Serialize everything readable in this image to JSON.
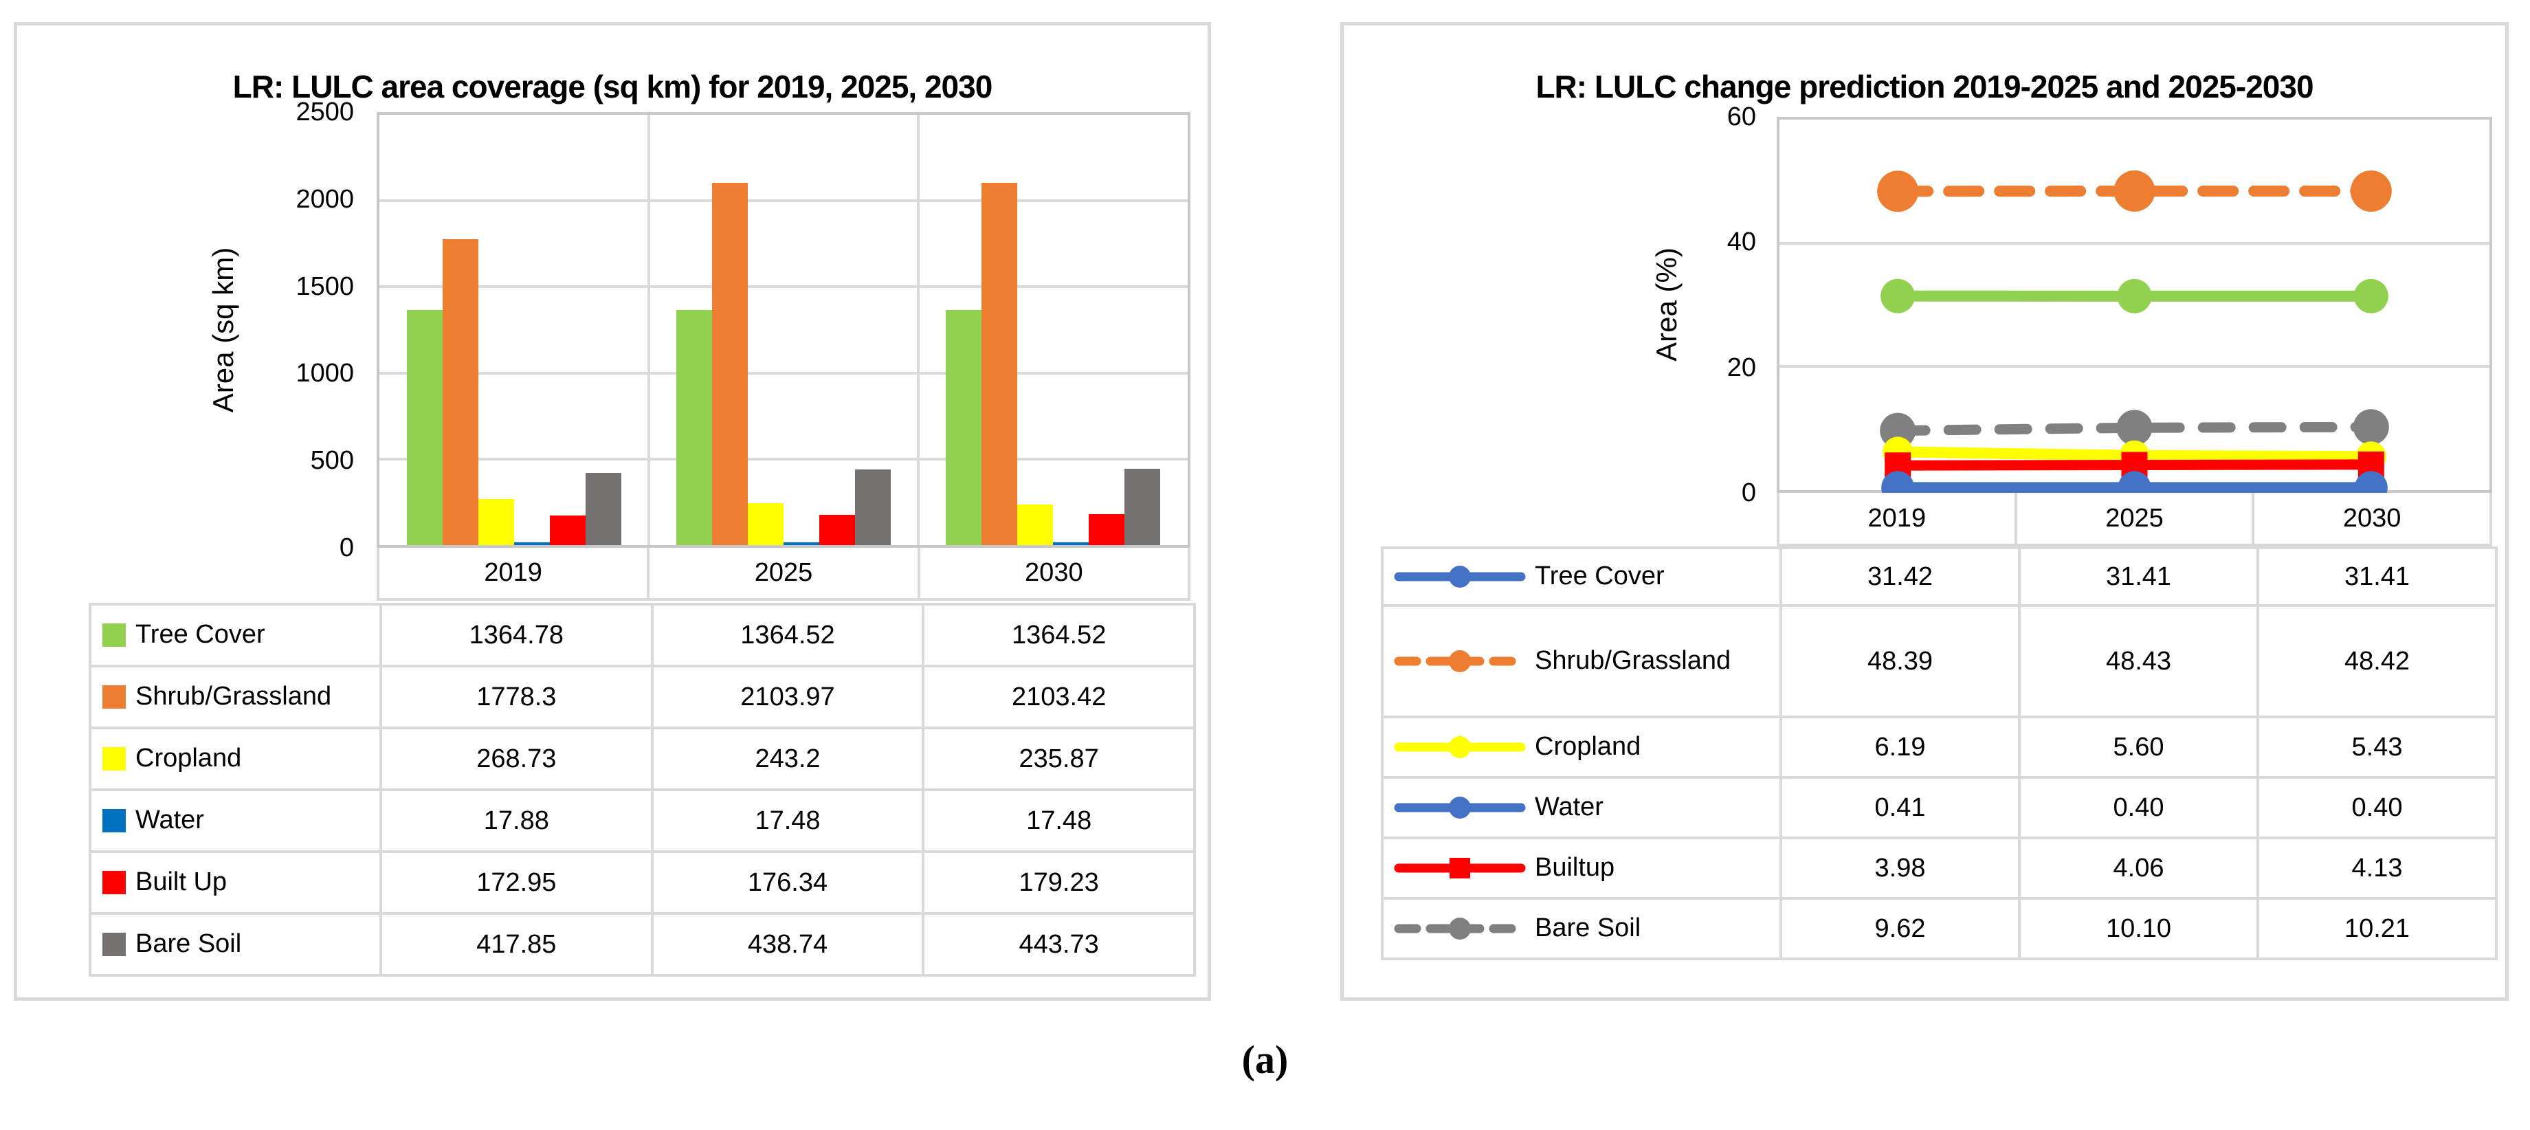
{
  "figure_label": "(a)",
  "colors": {
    "gridline": "#D9D9D9",
    "plot_border": "#C8C8C8",
    "panel_border": "#D9D9D9",
    "text": "#000000"
  },
  "chart_data": [
    {
      "id": "lr-area-coverage",
      "type": "bar",
      "title": "LR: LULC area coverage (sq km) for 2019, 2025, 2030",
      "xlabel": "",
      "ylabel": "Area (sq km)",
      "ylim": [
        0,
        2500
      ],
      "y_ticks": [
        0,
        500,
        1000,
        1500,
        2000,
        2500
      ],
      "grid": true,
      "legend_position": "table-below",
      "categories": [
        "2019",
        "2025",
        "2030"
      ],
      "series": [
        {
          "name": "Tree Cover",
          "color": "#92D050",
          "values": [
            1364.78,
            1364.52,
            1364.52
          ],
          "display": [
            "1364.78",
            "1364.52",
            "1364.52"
          ]
        },
        {
          "name": "Shrub/Grassland",
          "color": "#ED7D31",
          "values": [
            1778.3,
            2103.97,
            2103.42
          ],
          "display": [
            "1778.3",
            "2103.97",
            "2103.42"
          ]
        },
        {
          "name": "Cropland",
          "color": "#FFFF00",
          "values": [
            268.73,
            243.2,
            235.87
          ],
          "display": [
            "268.73",
            "243.2",
            "235.87"
          ]
        },
        {
          "name": "Water",
          "color": "#0070C0",
          "values": [
            17.88,
            17.48,
            17.48
          ],
          "display": [
            "17.88",
            "17.48",
            "17.48"
          ]
        },
        {
          "name": "Built Up",
          "color": "#FF0000",
          "values": [
            172.95,
            176.34,
            179.23
          ],
          "display": [
            "172.95",
            "176.34",
            "179.23"
          ]
        },
        {
          "name": "Bare Soil",
          "color": "#767171",
          "values": [
            417.85,
            438.74,
            443.73
          ],
          "display": [
            "417.85",
            "438.74",
            "443.73"
          ]
        }
      ]
    },
    {
      "id": "lr-change-prediction",
      "type": "line",
      "title": "LR: LULC change prediction 2019-2025 and 2025-2030",
      "xlabel": "",
      "ylabel": "Area (%)",
      "ylim": [
        0,
        60
      ],
      "y_ticks": [
        0,
        20,
        40,
        60
      ],
      "grid": true,
      "legend_position": "table-below",
      "categories": [
        "2019",
        "2025",
        "2030"
      ],
      "series": [
        {
          "name": "Tree Cover",
          "line_color": "#92D050",
          "legend_color": "#4472C4",
          "dash": false,
          "marker": "circle",
          "values": [
            31.42,
            31.41,
            31.41
          ],
          "display": [
            "31.42",
            "31.41",
            "31.41"
          ]
        },
        {
          "name": "Shrub/Grassland",
          "line_color": "#ED7D31",
          "legend_color": "#ED7D31",
          "dash": true,
          "marker": "circle",
          "values": [
            48.39,
            48.43,
            48.42
          ],
          "display": [
            "48.39",
            "48.43",
            "48.42"
          ]
        },
        {
          "name": "Cropland",
          "line_color": "#FFFF00",
          "legend_color": "#FFFF00",
          "dash": false,
          "marker": "circle",
          "values": [
            6.19,
            5.6,
            5.43
          ],
          "display": [
            "6.19",
            "5.60",
            "5.43"
          ]
        },
        {
          "name": "Water",
          "line_color": "#4472C4",
          "legend_color": "#4472C4",
          "dash": false,
          "marker": "circle",
          "values": [
            0.41,
            0.4,
            0.4
          ],
          "display": [
            "0.41",
            "0.40",
            "0.40"
          ]
        },
        {
          "name": "Builtup",
          "line_color": "#FF0000",
          "legend_color": "#FF0000",
          "dash": false,
          "marker": "square",
          "values": [
            3.98,
            4.06,
            4.13
          ],
          "display": [
            "3.98",
            "4.06",
            "4.13"
          ]
        },
        {
          "name": "Bare Soil",
          "line_color": "#808080",
          "legend_color": "#808080",
          "dash": true,
          "marker": "circle",
          "values": [
            9.62,
            10.1,
            10.21
          ],
          "display": [
            "9.62",
            "10.10",
            "10.21"
          ]
        }
      ]
    }
  ]
}
